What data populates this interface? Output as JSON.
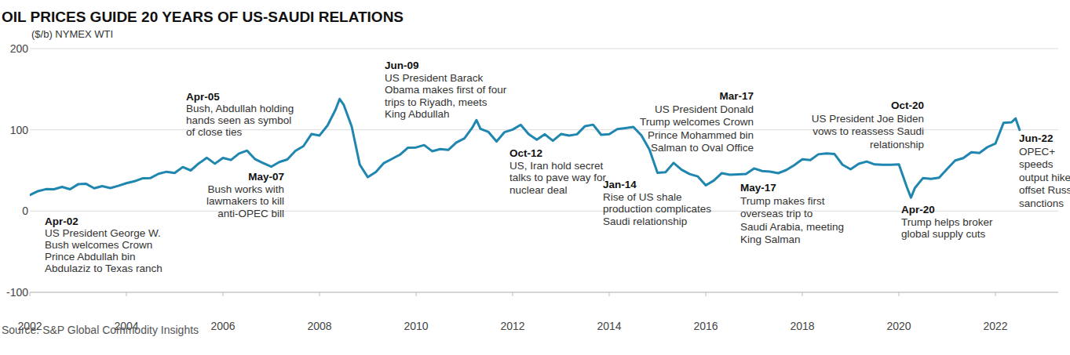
{
  "chart_data": {
    "type": "line",
    "title": "OIL PRICES GUIDE 20 YEARS OF US-SAUDI RELATIONS",
    "subtitle": "($/b) NYMEX WTI",
    "source": "Source: S&P Global Commodity Insights",
    "color": "#1f86b0",
    "grid": true,
    "xlim": [
      2002,
      2023.3
    ],
    "ylim": [
      -100,
      200
    ],
    "xticks": [
      2002,
      2004,
      2006,
      2008,
      2010,
      2012,
      2014,
      2016,
      2018,
      2020,
      2022
    ],
    "yticks": [
      -100,
      0,
      100,
      200
    ],
    "x": [
      2002,
      2002.167,
      2002.333,
      2002.5,
      2002.667,
      2002.833,
      2003,
      2003.167,
      2003.333,
      2003.5,
      2003.667,
      2003.833,
      2004,
      2004.167,
      2004.333,
      2004.5,
      2004.667,
      2004.833,
      2005,
      2005.167,
      2005.333,
      2005.5,
      2005.667,
      2005.833,
      2006,
      2006.167,
      2006.333,
      2006.5,
      2006.667,
      2006.833,
      2007,
      2007.167,
      2007.333,
      2007.5,
      2007.667,
      2007.833,
      2008,
      2008.167,
      2008.333,
      2008.417,
      2008.5,
      2008.667,
      2008.833,
      2009,
      2009.167,
      2009.333,
      2009.5,
      2009.667,
      2009.833,
      2010,
      2010.167,
      2010.333,
      2010.5,
      2010.667,
      2010.833,
      2011,
      2011.167,
      2011.25,
      2011.333,
      2011.5,
      2011.667,
      2011.833,
      2012,
      2012.167,
      2012.333,
      2012.5,
      2012.667,
      2012.833,
      2013,
      2013.167,
      2013.333,
      2013.5,
      2013.667,
      2013.833,
      2014,
      2014.167,
      2014.333,
      2014.5,
      2014.667,
      2014.833,
      2015,
      2015.167,
      2015.333,
      2015.5,
      2015.667,
      2015.833,
      2016,
      2016.167,
      2016.333,
      2016.5,
      2016.667,
      2016.833,
      2017,
      2017.167,
      2017.333,
      2017.5,
      2017.667,
      2017.833,
      2018,
      2018.167,
      2018.333,
      2018.5,
      2018.667,
      2018.833,
      2019,
      2019.167,
      2019.333,
      2019.5,
      2019.667,
      2019.833,
      2020,
      2020.167,
      2020.25,
      2020.333,
      2020.5,
      2020.667,
      2020.833,
      2021,
      2021.167,
      2021.333,
      2021.5,
      2021.667,
      2021.833,
      2022,
      2022.167,
      2022.333,
      2022.417,
      2022.5
    ],
    "values": [
      19.7,
      24.5,
      27,
      26.9,
      29.7,
      26.9,
      33,
      33.5,
      28.1,
      30.7,
      28.3,
      31.1,
      34.3,
      36.7,
      40.3,
      40.7,
      45.9,
      48.4,
      46.8,
      54.2,
      50,
      58.7,
      65.6,
      58.3,
      65.5,
      62.9,
      70.9,
      74.4,
      63.8,
      59.1,
      54.6,
      60.4,
      63.5,
      74.1,
      79.9,
      94.8,
      93,
      105.5,
      125,
      138,
      131,
      104,
      57.3,
      41.7,
      48,
      59.1,
      64.2,
      69.4,
      78,
      78.3,
      81.2,
      73.7,
      76.3,
      75.3,
      84.3,
      89.4,
      102.9,
      112,
      101.3,
      97.3,
      85.6,
      97.2,
      100.3,
      106.2,
      94.7,
      87.9,
      94.5,
      86.5,
      94.8,
      92.9,
      94.5,
      104.6,
      106.3,
      93.9,
      94.6,
      100.8,
      102.2,
      103.6,
      93.2,
      75.8,
      47.2,
      47.8,
      59.3,
      50.9,
      45.5,
      42.7,
      31.7,
      37.6,
      46.7,
      44.7,
      45.2,
      45.7,
      52.5,
      49.3,
      48.5,
      46.6,
      50.5,
      56.6,
      63.7,
      62.7,
      69.9,
      71,
      70.2,
      57,
      51.4,
      58.2,
      61,
      57.4,
      56.9,
      57,
      57.5,
      29.2,
      16.6,
      28.6,
      40.7,
      39.6,
      41.1,
      52,
      62.3,
      65.2,
      72.5,
      71.5,
      78.7,
      83.2,
      108.5,
      109.3,
      114,
      100
    ],
    "annotations": [
      {
        "label": "Apr-02",
        "lines": [
          "US President George W.",
          "Bush welcomes Crown",
          "Prince Abdullah bin",
          "Abdulaziz to Texas ranch"
        ]
      },
      {
        "label": "Apr-05",
        "lines": [
          "Bush, Abdullah holding",
          "hands seen as symbol",
          "of close ties"
        ]
      },
      {
        "label": "May-07",
        "lines": [
          "Bush works with",
          "lawmakers to kill",
          "anti-OPEC bill"
        ]
      },
      {
        "label": "Jun-09",
        "lines": [
          "US President Barack",
          "Obama makes first of four",
          "trips to Riyadh, meets",
          "King Abdullah"
        ]
      },
      {
        "label": "Oct-12",
        "lines": [
          "US, Iran hold secret",
          "talks to pave way for",
          "nuclear deal"
        ]
      },
      {
        "label": "Jan-14",
        "lines": [
          "Rise of US shale",
          "production complicates",
          "Saudi relationship"
        ]
      },
      {
        "label": "Mar-17",
        "lines": [
          "US President Donald",
          "Trump welcomes Crown",
          "Prince Mohammed bin",
          "Salman to Oval Office"
        ]
      },
      {
        "label": "May-17",
        "lines": [
          "Trump makes first",
          "overseas trip to",
          "Saudi Arabia, meeting",
          "King Salman"
        ]
      },
      {
        "label": "Oct-20",
        "lines": [
          "US President Joe Biden",
          "vows to reassess Saudi",
          "relationship"
        ]
      },
      {
        "label": "Apr-20",
        "lines": [
          "Trump helps broker",
          "global supply cuts"
        ]
      },
      {
        "label": "Jun-22",
        "lines": [
          "OPEC+",
          "speeds",
          "output hike to",
          "offset Russia",
          "sanctions"
        ]
      }
    ]
  }
}
